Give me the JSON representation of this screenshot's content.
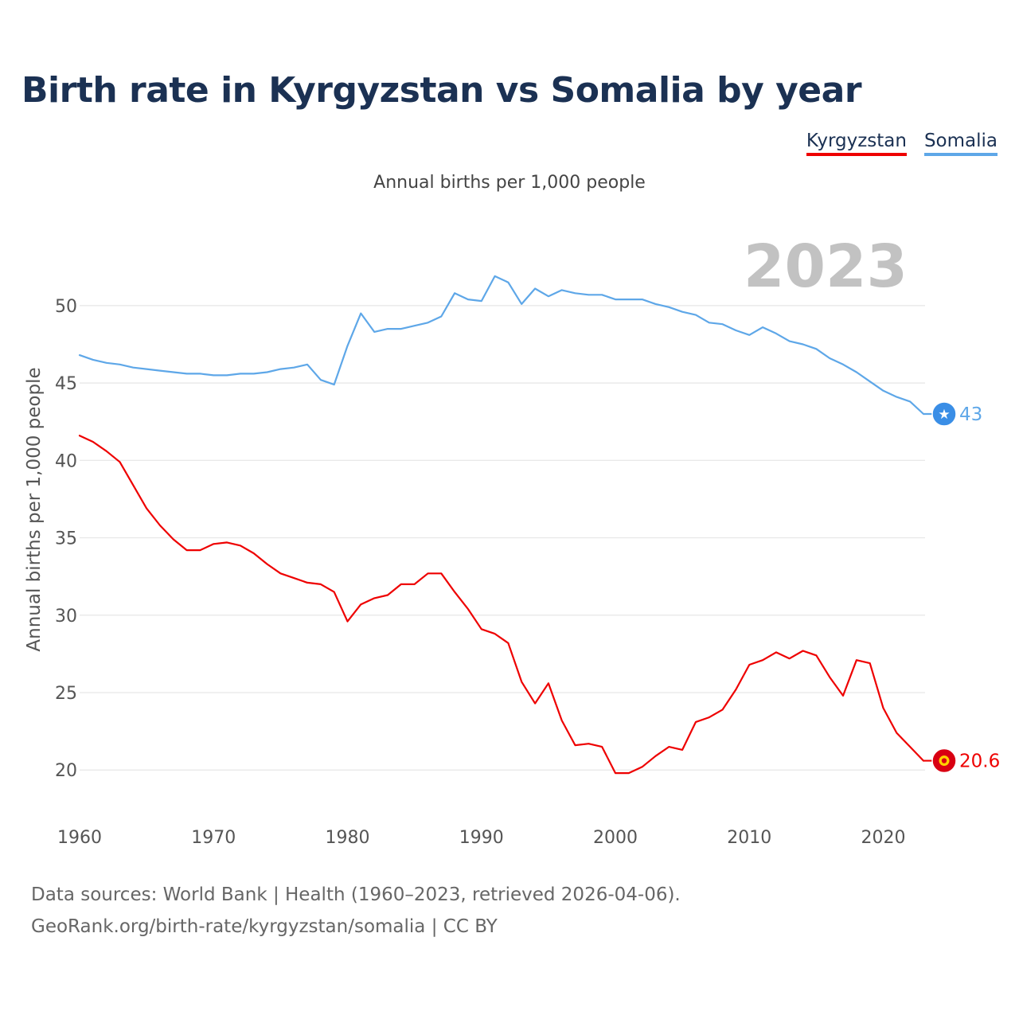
{
  "title": "Birth rate in Kyrgyzstan vs Somalia by year",
  "legend": {
    "kyrgyzstan": "Kyrgyzstan",
    "somalia": "Somalia"
  },
  "colors": {
    "kyrgyzstan": "#ee0000",
    "somalia": "#5ea7e8",
    "somalia_badge": "#3a8ee6",
    "kyrgyzstan_badge": "#d90012",
    "year_watermark": "#c2c2c2",
    "grid": "#e6e6e6",
    "tick": "#555555"
  },
  "footer": {
    "line1": "Data sources: World Bank | Health (1960–2023, retrieved 2026-04-06).",
    "line2": "GeoRank.org/birth-rate/kyrgyzstan/somalia | CC BY"
  },
  "chart_data": {
    "type": "line",
    "title": "Birth rate in Kyrgyzstan vs Somalia by year",
    "subtitle": "Annual births per 1,000 people",
    "xlabel": "",
    "ylabel": "Annual births per 1,000 people",
    "year_label": "2023",
    "xlim": [
      1960,
      2023
    ],
    "ylim": [
      17.8,
      53.8
    ],
    "x_ticks": [
      1960,
      1970,
      1980,
      1990,
      2000,
      2010,
      2020
    ],
    "y_ticks": [
      20,
      25,
      30,
      35,
      40,
      45,
      50
    ],
    "grid": true,
    "legend_position": "top-right",
    "x": [
      1960,
      1961,
      1962,
      1963,
      1964,
      1965,
      1966,
      1967,
      1968,
      1969,
      1970,
      1971,
      1972,
      1973,
      1974,
      1975,
      1976,
      1977,
      1978,
      1979,
      1980,
      1981,
      1982,
      1983,
      1984,
      1985,
      1986,
      1987,
      1988,
      1989,
      1990,
      1991,
      1992,
      1993,
      1994,
      1995,
      1996,
      1997,
      1998,
      1999,
      2000,
      2001,
      2002,
      2003,
      2004,
      2005,
      2006,
      2007,
      2008,
      2009,
      2010,
      2011,
      2012,
      2013,
      2014,
      2015,
      2016,
      2017,
      2018,
      2019,
      2020,
      2021,
      2022,
      2023
    ],
    "series": [
      {
        "name": "Kyrgyzstan",
        "end_label": "20.6",
        "values": [
          41.6,
          41.2,
          40.6,
          39.9,
          38.4,
          36.9,
          35.8,
          34.9,
          34.2,
          34.2,
          34.6,
          34.7,
          34.5,
          34.0,
          33.3,
          32.7,
          32.4,
          32.1,
          32.0,
          31.5,
          29.6,
          30.7,
          31.1,
          31.3,
          32.0,
          32.0,
          32.7,
          32.7,
          31.5,
          30.4,
          29.1,
          28.8,
          28.2,
          25.7,
          24.3,
          25.6,
          23.2,
          21.6,
          21.7,
          21.5,
          19.8,
          19.8,
          20.2,
          20.9,
          21.5,
          21.3,
          23.1,
          23.4,
          23.9,
          25.2,
          26.8,
          27.1,
          27.6,
          27.2,
          27.7,
          27.4,
          26.0,
          24.8,
          27.1,
          26.9,
          24.0,
          22.4,
          21.5,
          20.6
        ]
      },
      {
        "name": "Somalia",
        "end_label": "43",
        "values": [
          46.8,
          46.5,
          46.3,
          46.2,
          46.0,
          45.9,
          45.8,
          45.7,
          45.6,
          45.6,
          45.5,
          45.5,
          45.6,
          45.6,
          45.7,
          45.9,
          46.0,
          46.2,
          45.2,
          44.9,
          47.4,
          49.5,
          48.3,
          48.5,
          48.5,
          48.7,
          48.9,
          49.3,
          50.8,
          50.4,
          50.3,
          51.9,
          51.5,
          50.1,
          51.1,
          50.6,
          51.0,
          50.8,
          50.7,
          50.7,
          50.4,
          50.4,
          50.4,
          50.1,
          49.9,
          49.6,
          49.4,
          48.9,
          48.8,
          48.4,
          48.1,
          48.6,
          48.2,
          47.7,
          47.5,
          47.2,
          46.6,
          46.2,
          45.7,
          45.1,
          44.5,
          44.1,
          43.8,
          43.0
        ]
      }
    ]
  }
}
